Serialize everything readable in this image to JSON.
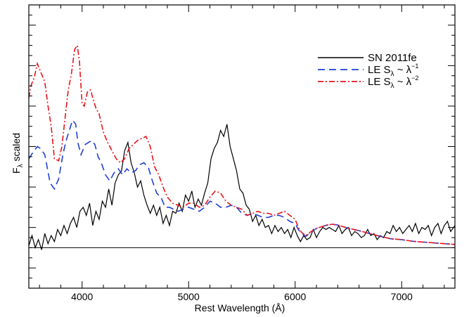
{
  "chart_data": {
    "type": "line",
    "xlabel": "Rest Wavelength (Å)",
    "ylabel_main": "F",
    "ylabel_sub": "λ",
    "ylabel_rest": " scaled",
    "xlim": [
      3500,
      7500
    ],
    "ylim": [
      -1.0,
      6.0
    ],
    "x_ticks": [
      4000,
      5000,
      6000,
      7000
    ],
    "x_tick_labels": [
      "4000",
      "5000",
      "6000",
      "7000"
    ],
    "y_ticks_major": [
      -0.5,
      0.5,
      1.5,
      2.5,
      3.5,
      4.5,
      5.5
    ],
    "zero_line": 0,
    "legend_position": "upper-right",
    "legend": [
      {
        "id": "sn",
        "parts": [
          {
            "t": "SN 2011fe"
          }
        ]
      },
      {
        "id": "le1",
        "parts": [
          {
            "t": "LE S"
          },
          {
            "t": "λ",
            "s": "sub"
          },
          {
            "t": " ~ λ"
          },
          {
            "t": "−1",
            "s": "sup"
          }
        ]
      },
      {
        "id": "le2",
        "parts": [
          {
            "t": "LE S"
          },
          {
            "t": "λ",
            "s": "sub"
          },
          {
            "t": " ~ λ"
          },
          {
            "t": "−2",
            "s": "sup"
          }
        ]
      }
    ],
    "series": [
      {
        "id": "sn",
        "color": "#000000",
        "dash": "",
        "x": [
          3500,
          3530,
          3560,
          3590,
          3620,
          3650,
          3680,
          3710,
          3740,
          3770,
          3800,
          3830,
          3860,
          3890,
          3920,
          3950,
          3980,
          4010,
          4040,
          4070,
          4100,
          4130,
          4160,
          4190,
          4220,
          4250,
          4280,
          4310,
          4340,
          4370,
          4400,
          4430,
          4460,
          4490,
          4520,
          4550,
          4580,
          4610,
          4640,
          4670,
          4700,
          4730,
          4760,
          4790,
          4820,
          4850,
          4880,
          4910,
          4940,
          4970,
          5000,
          5030,
          5060,
          5090,
          5120,
          5150,
          5180,
          5210,
          5240,
          5270,
          5300,
          5330,
          5360,
          5390,
          5420,
          5450,
          5480,
          5510,
          5540,
          5570,
          5600,
          5630,
          5660,
          5690,
          5720,
          5750,
          5780,
          5810,
          5840,
          5870,
          5900,
          5930,
          5960,
          5990,
          6020,
          6050,
          6080,
          6110,
          6140,
          6170,
          6200,
          6230,
          6260,
          6290,
          6320,
          6350,
          6380,
          6410,
          6440,
          6470,
          6500,
          6530,
          6560,
          6590,
          6620,
          6650,
          6680,
          6710,
          6740,
          6770,
          6800,
          6830,
          6860,
          6890,
          6920,
          6950,
          6980,
          7010,
          7040,
          7070,
          7100,
          7130,
          7160,
          7190,
          7220,
          7250,
          7280,
          7310,
          7340,
          7370,
          7400,
          7430,
          7460,
          7500
        ],
        "y": [
          0.05,
          0.3,
          0.0,
          0.2,
          -0.05,
          0.35,
          0.1,
          0.3,
          0.15,
          0.45,
          0.3,
          0.55,
          0.35,
          0.6,
          0.75,
          0.5,
          0.9,
          1.0,
          0.8,
          1.1,
          0.55,
          0.9,
          0.7,
          1.15,
          1.0,
          1.45,
          1.05,
          1.6,
          1.8,
          1.9,
          2.4,
          2.6,
          2.1,
          1.85,
          1.5,
          1.65,
          1.3,
          1.05,
          0.85,
          1.05,
          0.8,
          1.0,
          0.6,
          0.8,
          0.55,
          0.9,
          0.85,
          1.1,
          0.9,
          1.3,
          1.15,
          1.4,
          1.0,
          1.2,
          1.05,
          1.35,
          1.6,
          2.2,
          2.45,
          2.6,
          2.9,
          2.75,
          3.05,
          2.5,
          2.2,
          1.9,
          1.45,
          1.35,
          1.05,
          0.95,
          0.65,
          0.8,
          0.55,
          0.7,
          0.5,
          0.55,
          0.35,
          0.55,
          0.4,
          0.5,
          0.35,
          0.45,
          0.25,
          0.5,
          0.3,
          0.15,
          0.3,
          0.2,
          0.25,
          0.45,
          0.25,
          0.4,
          0.5,
          0.45,
          0.5,
          0.45,
          0.4,
          0.55,
          0.35,
          0.45,
          0.5,
          0.3,
          0.4,
          0.35,
          0.25,
          0.3,
          0.45,
          0.3,
          0.35,
          0.2,
          0.3,
          0.25,
          0.4,
          0.35,
          0.55,
          0.4,
          0.5,
          0.35,
          0.45,
          0.55,
          0.4,
          0.6,
          0.35,
          0.5,
          0.45,
          0.55,
          0.3,
          0.5,
          0.6,
          0.35,
          0.55,
          0.65,
          0.4,
          0.55
        ]
      },
      {
        "id": "le1",
        "color": "#1f3fd6",
        "dash": "10,6",
        "x": [
          3500,
          3550,
          3580,
          3610,
          3650,
          3700,
          3740,
          3780,
          3820,
          3850,
          3880,
          3910,
          3940,
          3960,
          3990,
          4030,
          4060,
          4090,
          4120,
          4150,
          4180,
          4220,
          4260,
          4300,
          4340,
          4380,
          4420,
          4460,
          4500,
          4540,
          4580,
          4620,
          4660,
          4700,
          4740,
          4780,
          4820,
          4860,
          4900,
          4950,
          5000,
          5050,
          5100,
          5150,
          5200,
          5250,
          5300,
          5350,
          5400,
          5450,
          5500,
          5550,
          5600,
          5650,
          5700,
          5750,
          5800,
          5850,
          5900,
          5950,
          6000,
          6030,
          6060,
          6100,
          6150,
          6200,
          6250,
          6300,
          6350,
          6400,
          6450,
          6500,
          6600,
          6700,
          6800,
          6900,
          7000,
          7100,
          7200,
          7300,
          7400,
          7500
        ],
        "y": [
          2.2,
          2.4,
          2.5,
          2.45,
          2.3,
          1.6,
          1.45,
          1.7,
          2.3,
          2.65,
          2.9,
          3.15,
          3.05,
          2.6,
          2.3,
          2.55,
          2.6,
          2.65,
          2.55,
          2.25,
          2.1,
          1.8,
          1.65,
          1.85,
          1.95,
          1.8,
          1.95,
          1.85,
          1.9,
          2.05,
          2.1,
          2.0,
          1.65,
          1.35,
          1.25,
          1.0,
          1.0,
          0.95,
          0.9,
          0.95,
          1.0,
          0.95,
          0.9,
          1.0,
          1.15,
          1.1,
          1.0,
          1.0,
          1.05,
          1.0,
          0.85,
          0.8,
          0.85,
          0.8,
          0.75,
          0.75,
          0.8,
          0.8,
          0.75,
          0.65,
          0.6,
          0.45,
          0.35,
          0.28,
          0.38,
          0.48,
          0.52,
          0.56,
          0.58,
          0.56,
          0.52,
          0.48,
          0.42,
          0.35,
          0.28,
          0.22,
          0.2,
          0.16,
          0.14,
          0.12,
          0.1,
          0.08
        ]
      },
      {
        "id": "le2",
        "color": "#e8141b",
        "dash": "8,3,2,3",
        "x": [
          3500,
          3520,
          3550,
          3580,
          3610,
          3650,
          3680,
          3710,
          3740,
          3780,
          3810,
          3840,
          3870,
          3900,
          3930,
          3955,
          3975,
          4000,
          4020,
          4050,
          4080,
          4100,
          4130,
          4160,
          4200,
          4240,
          4280,
          4320,
          4360,
          4400,
          4440,
          4480,
          4520,
          4560,
          4600,
          4640,
          4680,
          4720,
          4760,
          4800,
          4850,
          4900,
          4950,
          5000,
          5050,
          5100,
          5150,
          5200,
          5250,
          5300,
          5350,
          5400,
          5450,
          5500,
          5550,
          5600,
          5650,
          5700,
          5750,
          5800,
          5850,
          5900,
          5950,
          6000,
          6030,
          6060,
          6100,
          6150,
          6200,
          6250,
          6300,
          6350,
          6400,
          6450,
          6500,
          6600,
          6700,
          6800,
          6900,
          7000,
          7100,
          7200,
          7300,
          7400,
          7500
        ],
        "y": [
          3.7,
          4.0,
          4.2,
          4.55,
          4.35,
          4.1,
          3.5,
          3.0,
          2.2,
          2.15,
          2.5,
          3.2,
          3.9,
          4.3,
          4.9,
          5.0,
          4.6,
          3.55,
          3.5,
          3.85,
          3.9,
          3.7,
          3.45,
          3.3,
          2.85,
          2.6,
          2.4,
          2.2,
          2.1,
          2.2,
          2.45,
          2.55,
          2.65,
          2.7,
          2.75,
          2.5,
          2.0,
          1.8,
          1.5,
          1.25,
          1.1,
          1.05,
          1.0,
          1.1,
          1.1,
          1.0,
          1.05,
          1.25,
          1.4,
          1.35,
          1.15,
          1.05,
          1.0,
          0.95,
          0.8,
          0.85,
          0.9,
          0.85,
          0.85,
          0.8,
          0.85,
          0.9,
          0.8,
          0.7,
          0.5,
          0.38,
          0.3,
          0.4,
          0.48,
          0.52,
          0.56,
          0.58,
          0.56,
          0.52,
          0.48,
          0.42,
          0.35,
          0.28,
          0.22,
          0.2,
          0.16,
          0.14,
          0.12,
          0.1,
          0.08
        ]
      }
    ]
  }
}
